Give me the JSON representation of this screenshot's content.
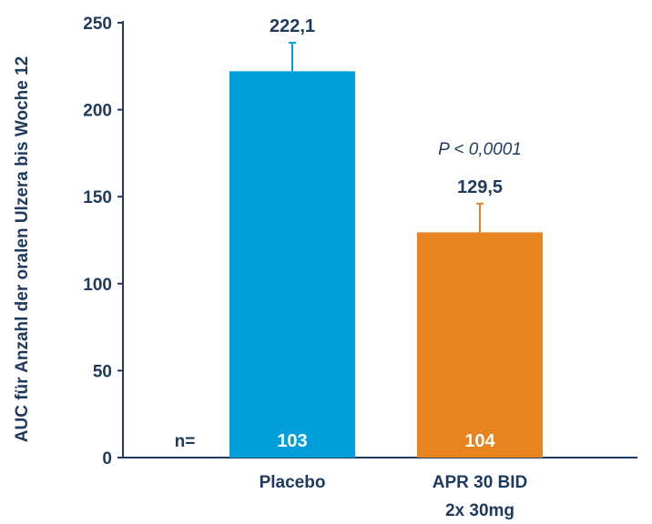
{
  "chart_data": {
    "type": "bar",
    "title": "",
    "xlabel": "",
    "ylabel": "AUC für Anzahl der oralen Ulzera bis Woche 12",
    "ylim": [
      0,
      250
    ],
    "yticks": [
      0,
      50,
      100,
      150,
      200,
      250
    ],
    "grid": false,
    "legend": "none",
    "categories": [
      {
        "line1": "Placebo",
        "line2": ""
      },
      {
        "line1": "APR 30 BID",
        "line2": "2x 30mg"
      }
    ],
    "values": [
      222.1,
      129.5
    ],
    "value_labels": [
      "222,1",
      "129,5"
    ],
    "error_upper": [
      238.5,
      146.0
    ],
    "colors": [
      "#009fdb",
      "#e8841f"
    ],
    "n_label": "n=",
    "n_values": [
      "103",
      "104"
    ],
    "annotation": "P < 0,0001"
  }
}
